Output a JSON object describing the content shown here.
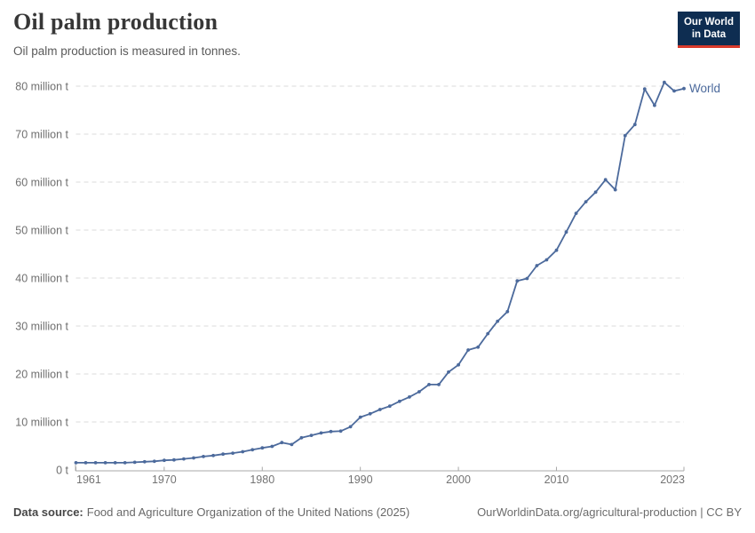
{
  "header": {
    "title": "Oil palm production",
    "subtitle": "Oil palm production is measured in tonnes."
  },
  "logo": {
    "line1": "Our World",
    "line2": "in Data",
    "bg_color": "#0E2D51",
    "accent_color": "#D93A2B"
  },
  "chart_data": {
    "type": "line",
    "title": "Oil palm production",
    "unit": "tonnes",
    "values_unit": "million tonnes",
    "grid": "horizontal dashed gridlines",
    "legend_position": "end-of-line label",
    "x": [
      1961,
      1962,
      1963,
      1964,
      1965,
      1966,
      1967,
      1968,
      1969,
      1970,
      1971,
      1972,
      1973,
      1974,
      1975,
      1976,
      1977,
      1978,
      1979,
      1980,
      1981,
      1982,
      1983,
      1984,
      1985,
      1986,
      1987,
      1988,
      1989,
      1990,
      1991,
      1992,
      1993,
      1994,
      1995,
      1996,
      1997,
      1998,
      1999,
      2000,
      2001,
      2002,
      2003,
      2004,
      2005,
      2006,
      2007,
      2008,
      2009,
      2010,
      2011,
      2012,
      2013,
      2014,
      2015,
      2016,
      2017,
      2018,
      2019,
      2020,
      2021,
      2022,
      2023
    ],
    "series": [
      {
        "name": "World",
        "color": "#4C6A9C",
        "values": [
          1.5,
          1.5,
          1.5,
          1.5,
          1.5,
          1.5,
          1.6,
          1.7,
          1.8,
          2.0,
          2.1,
          2.3,
          2.5,
          2.8,
          3.0,
          3.3,
          3.5,
          3.8,
          4.2,
          4.6,
          4.9,
          5.7,
          5.3,
          6.7,
          7.2,
          7.7,
          8.0,
          8.1,
          9.0,
          11.0,
          11.7,
          12.6,
          13.3,
          14.3,
          15.2,
          16.3,
          17.8,
          17.8,
          20.4,
          21.9,
          25.0,
          25.6,
          28.4,
          31.0,
          33.0,
          39.4,
          39.9,
          42.6,
          43.8,
          45.8,
          49.6,
          53.5,
          55.9,
          57.9,
          60.5,
          58.4,
          69.7,
          72.0,
          79.4,
          76.0,
          80.8,
          79.0,
          79.5
        ]
      }
    ],
    "xlabel": "",
    "ylabel": "",
    "xlim": [
      1961,
      2023
    ],
    "ylim": [
      0,
      80
    ],
    "xticks": [
      1961,
      1970,
      1980,
      1990,
      2000,
      2010,
      2023
    ],
    "yticks": {
      "values": [
        0,
        10,
        20,
        30,
        40,
        50,
        60,
        70,
        80
      ],
      "labels": [
        "0 t",
        "10 million t",
        "20 million t",
        "30 million t",
        "40 million t",
        "50 million t",
        "60 million t",
        "70 million t",
        "80 million t"
      ]
    }
  },
  "footer": {
    "source_label": "Data source:",
    "source_text": "Food and Agriculture Organization of the United Nations (2025)",
    "citation": "OurWorldinData.org/agricultural-production | CC BY"
  }
}
